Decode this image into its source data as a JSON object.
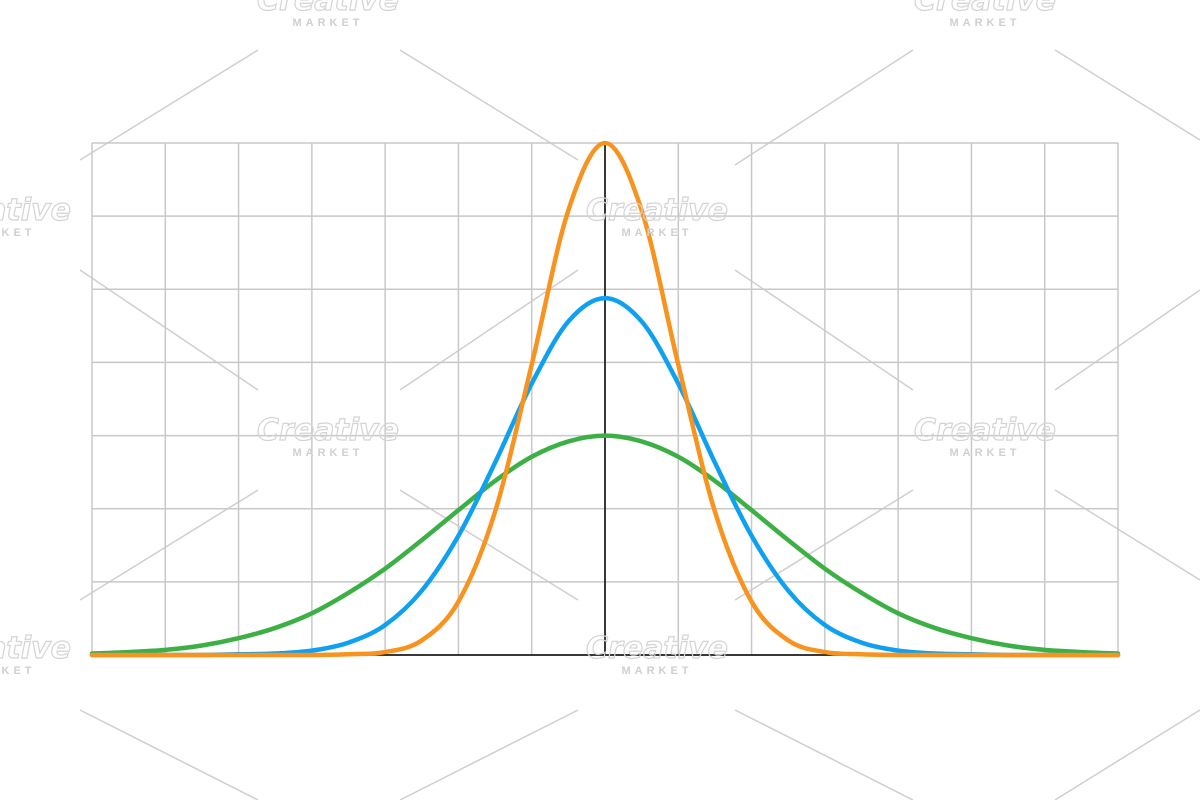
{
  "chart_data": {
    "type": "line",
    "x": [
      -7,
      -6.5,
      -6,
      -5.5,
      -5,
      -4.5,
      -4,
      -3.5,
      -3,
      -2.5,
      -2,
      -1.5,
      -1,
      -0.5,
      0,
      0.5,
      1,
      1.5,
      2,
      2.5,
      3,
      3.5,
      4,
      4.5,
      5,
      5.5,
      6,
      6.5,
      7
    ],
    "series": [
      {
        "color": "#3cb044",
        "values": [
          0.02,
          0.04,
          0.07,
          0.13,
          0.23,
          0.37,
          0.57,
          0.85,
          1.18,
          1.57,
          1.98,
          2.38,
          2.71,
          2.92,
          3.0,
          2.92,
          2.71,
          2.38,
          1.98,
          1.57,
          1.18,
          0.85,
          0.57,
          0.37,
          0.23,
          0.13,
          0.07,
          0.04,
          0.02
        ]
      },
      {
        "color": "#0fa0f0",
        "values": [
          0,
          0,
          0,
          0,
          0.01,
          0.02,
          0.06,
          0.17,
          0.41,
          0.88,
          1.63,
          2.63,
          3.71,
          4.56,
          4.88,
          4.56,
          3.71,
          2.63,
          1.63,
          0.88,
          0.41,
          0.17,
          0.06,
          0.02,
          0.01,
          0,
          0,
          0,
          0
        ]
      },
      {
        "color": "#f7931e",
        "values": [
          0,
          0,
          0,
          0,
          0,
          0,
          0,
          0.01,
          0.04,
          0.2,
          0.73,
          1.96,
          3.97,
          6.08,
          7,
          6.08,
          3.97,
          1.96,
          0.73,
          0.2,
          0.04,
          0.01,
          0,
          0,
          0,
          0,
          0,
          0,
          0
        ]
      }
    ],
    "xlim": [
      -7,
      7
    ],
    "ylim": [
      0,
      7
    ],
    "xticks": [
      -7,
      -6,
      -5,
      -4,
      -3,
      -2,
      -1,
      0,
      1,
      2,
      3,
      4,
      5,
      6,
      7
    ],
    "yticks": [
      0,
      1,
      2,
      3,
      4,
      5,
      6,
      7
    ],
    "grid": true
  },
  "watermark": {
    "brand": "Creative",
    "sub": "MARKET"
  }
}
